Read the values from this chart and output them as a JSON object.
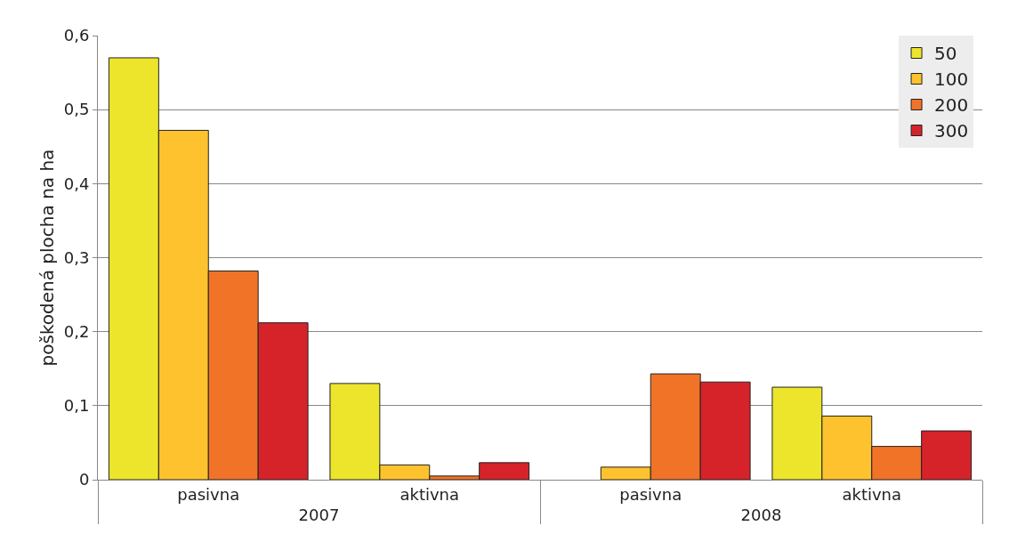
{
  "chart_data": {
    "type": "bar",
    "ylabel": "poškodená plocha na ha",
    "categories": [
      "pasivna",
      "aktivna",
      "pasivna",
      "aktivna"
    ],
    "annotations": [
      "2007",
      "2008"
    ],
    "series": [
      {
        "name": "50",
        "color": "#ece52c",
        "values": [
          0.57,
          0.13,
          null,
          0.125
        ]
      },
      {
        "name": "100",
        "color": "#fdc22e",
        "values": [
          0.472,
          0.02,
          0.017,
          0.086
        ]
      },
      {
        "name": "200",
        "color": "#f07328",
        "values": [
          0.282,
          0.005,
          0.143,
          0.045
        ]
      },
      {
        "name": "300",
        "color": "#d6232a",
        "values": [
          0.212,
          0.023,
          0.132,
          0.066
        ]
      }
    ],
    "ylim": [
      0,
      0.6
    ],
    "yticks": [
      {
        "value": 0,
        "label": "0"
      },
      {
        "value": 0.1,
        "label": "0,1"
      },
      {
        "value": 0.2,
        "label": "0,2"
      },
      {
        "value": 0.3,
        "label": "0,3"
      },
      {
        "value": 0.4,
        "label": "0,4"
      },
      {
        "value": 0.5,
        "label": "0,5"
      },
      {
        "value": 0.6,
        "label": "0,6"
      }
    ],
    "grid": "y",
    "legend": "top right"
  }
}
